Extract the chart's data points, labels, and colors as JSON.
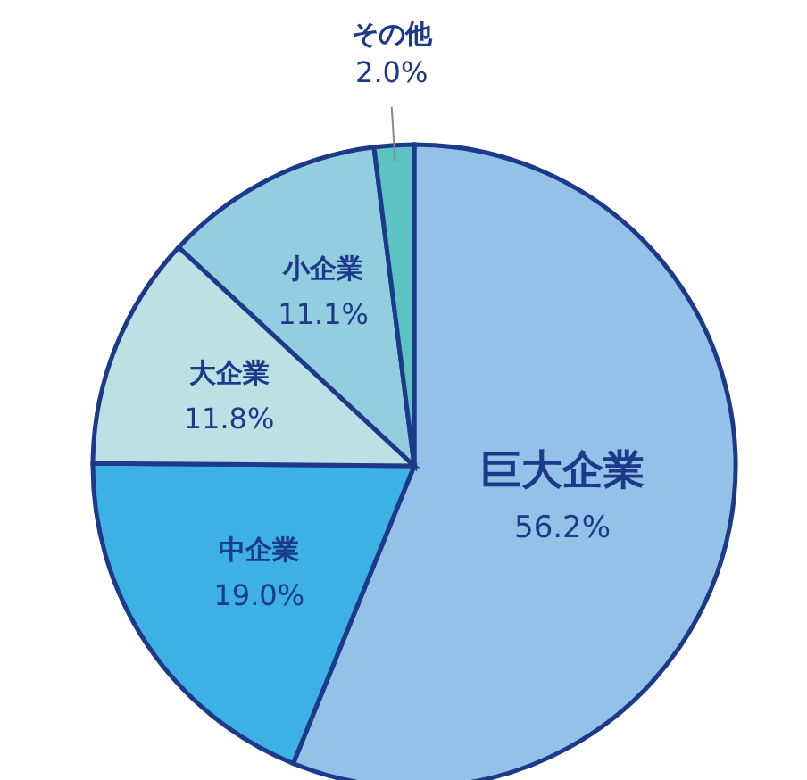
{
  "chart_data": {
    "type": "pie",
    "categories": [
      "巨大企業",
      "中企業",
      "大企業",
      "小企業",
      "その他"
    ],
    "values": [
      56.2,
      19.0,
      11.8,
      11.1,
      2.0
    ],
    "value_labels": [
      "56.2%",
      "19.0%",
      "11.8%",
      "11.1%",
      "2.0%"
    ],
    "colors": [
      "#94c1e7",
      "#3db1e3",
      "#bde0e5",
      "#92cde0",
      "#5cc3c2"
    ],
    "legend": false
  }
}
